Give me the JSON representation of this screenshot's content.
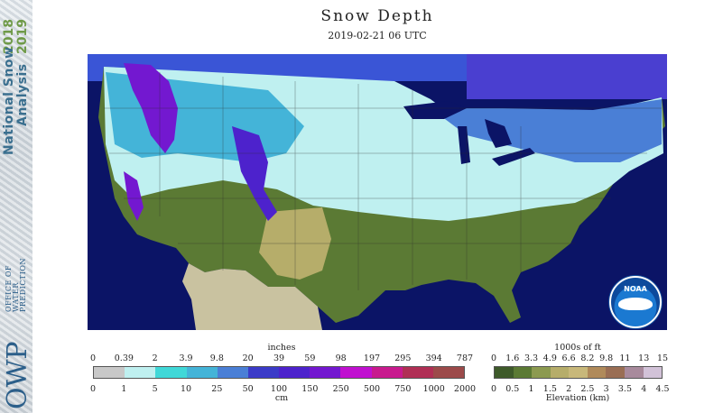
{
  "banner": {
    "title_line1": "National Snow",
    "title_line2": "Analysis",
    "year1": "2018",
    "year2": "2019",
    "org_short": "OWP",
    "org_line1": "OFFICE OF",
    "org_line2": "WATER",
    "org_line3": "PREDICTION"
  },
  "title": "Snow Depth",
  "subtitle": "2019-02-21 06 UTC",
  "noaa_label": "NOAA",
  "snow_legend": {
    "top_unit": "inches",
    "top_ticks": [
      "0",
      "0.39",
      "2",
      "3.9",
      "9.8",
      "20",
      "39",
      "59",
      "98",
      "197",
      "295",
      "394",
      "787"
    ],
    "bottom_ticks": [
      "0",
      "1",
      "5",
      "10",
      "25",
      "50",
      "100",
      "150",
      "250",
      "500",
      "750",
      "1000",
      "2000"
    ],
    "bottom_unit": "cm",
    "colors": [
      "#c8c8c8",
      "#bff0f0",
      "#40d8d8",
      "#44b4d8",
      "#4a7fd6",
      "#3b3bc8",
      "#4d22cc",
      "#7318d0",
      "#c010d0",
      "#c81a8e",
      "#b02f55",
      "#9c4a4a"
    ]
  },
  "elev_legend": {
    "top_unit": "1000s of ft",
    "top_ticks": [
      "0",
      "1.6",
      "3.3",
      "4.9",
      "6.6",
      "8.2",
      "9.8",
      "11",
      "13",
      "15"
    ],
    "bottom_ticks": [
      "0",
      "0.5",
      "1",
      "1.5",
      "2",
      "2.5",
      "3",
      "3.5",
      "4",
      "4.5"
    ],
    "bottom_unit": "Elevation (km)",
    "colors": [
      "#3e5a2a",
      "#5b7a34",
      "#8c9a50",
      "#b6ad6a",
      "#c8b87a",
      "#b08a5a",
      "#9a6e54",
      "#a88a9c",
      "#d2c2d8"
    ]
  }
}
